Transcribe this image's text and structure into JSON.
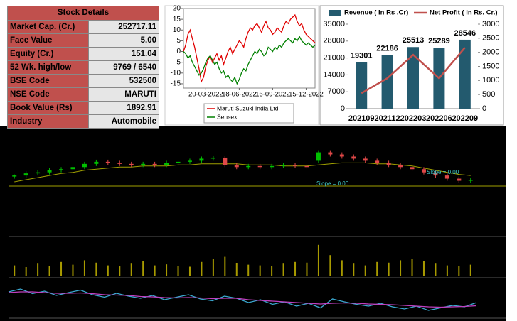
{
  "stock_details": {
    "title": "Stock Details",
    "rows": [
      [
        "Market Cap. (Cr.)",
        "252717.11"
      ],
      [
        "Face Value",
        "5.00"
      ],
      [
        "Equity (Cr.)",
        "151.04"
      ],
      [
        "52 Wk. high/low",
        "9769 / 6540"
      ],
      [
        "BSE Code",
        "532500"
      ],
      [
        "NSE Code",
        "MARUTI"
      ],
      [
        "Book Value (Rs)",
        "1892.91"
      ],
      [
        "Industry",
        "Automobile"
      ]
    ]
  },
  "chart_data": [
    {
      "type": "line",
      "categories": [
        null,
        null,
        null,
        null,
        null,
        null,
        null,
        null,
        null,
        null,
        "20-03-2022",
        null,
        null,
        null,
        null,
        null,
        null,
        null,
        null,
        null,
        null,
        null,
        null,
        null,
        null,
        "18-06-2022",
        null,
        null,
        null,
        null,
        null,
        null,
        null,
        null,
        null,
        null,
        null,
        null,
        null,
        null,
        "16-09-2022",
        null,
        null,
        null,
        null,
        null,
        null,
        null,
        null,
        null,
        null,
        null,
        null,
        null,
        null,
        "15-12-2022",
        null,
        null,
        null,
        null
      ],
      "ylim": [
        -17,
        20
      ],
      "yticks": [
        20,
        15,
        10,
        5,
        0,
        -5,
        -10,
        -15
      ],
      "series": [
        {
          "name": "Maruti Suzuki India Ltd",
          "color": "#e00000",
          "values": [
            0,
            3,
            8,
            10,
            6,
            2,
            -3,
            -8,
            -14,
            -12,
            -7,
            -4,
            -2,
            -5,
            -3,
            -1,
            -4,
            -2,
            -6,
            -3,
            0,
            2,
            -1,
            1,
            3,
            5,
            4,
            2,
            6,
            9,
            11,
            10,
            12,
            13,
            11,
            9,
            12,
            14,
            11,
            10,
            8,
            9,
            11,
            10,
            9,
            12,
            14,
            13,
            15,
            16,
            17,
            14,
            12,
            13,
            10,
            8,
            7,
            6,
            5,
            4
          ]
        },
        {
          "name": "Sensex",
          "color": "#008000",
          "values": [
            0,
            -1,
            -3,
            -2,
            -5,
            -7,
            -9,
            -11,
            -10,
            -8,
            -5,
            -3,
            -2,
            -4,
            -6,
            -5,
            -8,
            -10,
            -9,
            -12,
            -11,
            -13,
            -14,
            -12,
            -15,
            -13,
            -10,
            -8,
            -9,
            -6,
            -4,
            -2,
            0,
            -1,
            1,
            0,
            -2,
            -1,
            2,
            1,
            0,
            2,
            1,
            3,
            2,
            4,
            5,
            6,
            5,
            4,
            6,
            5,
            7,
            5,
            4,
            3,
            4,
            3,
            2,
            3
          ]
        }
      ]
    },
    {
      "type": "bar",
      "categories": [
        "202109",
        "202112",
        "202203",
        "202206",
        "202209"
      ],
      "ylim": [
        0,
        35000
      ],
      "yticks": [
        0,
        7000,
        14000,
        21000,
        28000,
        35000
      ],
      "y2lim": [
        0,
        3000
      ],
      "y2ticks": [
        0,
        500,
        1000,
        1500,
        2000,
        2500,
        3000
      ],
      "series": [
        {
          "name": "Revenue ( in Rs .Cr)",
          "color": "#235a6e",
          "values": [
            19301,
            22186,
            25513,
            25289,
            28546
          ]
        },
        {
          "name": "Net Profit ( in Rs. Cr.)",
          "color": "#c0504d",
          "axis": "y2",
          "values": [
            550,
            1080,
            1910,
            1080,
            2170
          ]
        }
      ]
    },
    {
      "type": "candlestick",
      "ylim": [
        0,
        100
      ],
      "up_color": "#00c000",
      "down_color": "#e04848",
      "average_color": "#a0a000",
      "open": [
        55,
        56,
        58,
        59,
        61,
        62,
        64,
        67,
        69,
        68,
        67,
        66,
        67,
        66,
        68,
        69,
        70,
        72,
        73,
        66,
        64,
        65,
        64,
        65,
        66,
        65,
        70,
        78,
        76,
        74,
        72,
        70,
        68,
        66,
        64,
        62,
        59,
        56,
        53,
        51
      ],
      "high": [
        57,
        60,
        61,
        63,
        64,
        66,
        69,
        71,
        71,
        70,
        69,
        69,
        69,
        70,
        71,
        72,
        74,
        75,
        75,
        68,
        67,
        67,
        67,
        68,
        68,
        67,
        80,
        80,
        78,
        76,
        74,
        72,
        70,
        68,
        66,
        64,
        61,
        58,
        55,
        54
      ],
      "low": [
        53,
        54,
        56,
        57,
        59,
        60,
        62,
        65,
        66,
        65,
        64,
        64,
        64,
        64,
        66,
        67,
        68,
        70,
        64,
        62,
        62,
        62,
        62,
        63,
        63,
        62,
        68,
        74,
        72,
        70,
        68,
        66,
        64,
        62,
        60,
        57,
        54,
        51,
        49,
        49
      ],
      "close": [
        56,
        58,
        59,
        61,
        62,
        64,
        67,
        69,
        68,
        67,
        66,
        67,
        66,
        68,
        69,
        70,
        72,
        73,
        66,
        64,
        65,
        64,
        65,
        66,
        65,
        64,
        78,
        76,
        74,
        72,
        70,
        68,
        66,
        64,
        62,
        59,
        56,
        53,
        51,
        52
      ],
      "average": [
        50,
        52,
        54,
        56,
        58,
        59,
        61,
        62,
        63,
        64,
        64,
        65,
        65,
        65,
        66,
        66,
        67,
        67,
        67,
        67,
        66,
        66,
        66,
        65,
        65,
        65,
        66,
        67,
        68,
        68,
        68,
        67,
        67,
        66,
        65,
        63,
        61,
        59,
        57,
        56
      ],
      "annotations": [
        "Slope = 0.00",
        "Slope = 0.00"
      ]
    },
    {
      "type": "bar",
      "ylim": [
        0,
        100
      ],
      "color": "#a89a00",
      "values": [
        30,
        25,
        35,
        28,
        40,
        32,
        45,
        38,
        30,
        27,
        35,
        42,
        30,
        33,
        28,
        26,
        40,
        48,
        55,
        36,
        32,
        30,
        28,
        35,
        40,
        38,
        90,
        60,
        45,
        35,
        30,
        40,
        38,
        45,
        50,
        42,
        35,
        30,
        28,
        32
      ]
    },
    {
      "type": "line",
      "ylim": [
        0,
        100
      ],
      "series": [
        {
          "color": "#3aa8d0",
          "values": [
            70,
            78,
            65,
            72,
            60,
            68,
            75,
            62,
            55,
            66,
            58,
            52,
            60,
            48,
            55,
            62,
            50,
            45,
            58,
            52,
            40,
            48,
            35,
            42,
            30,
            38,
            25,
            50,
            42,
            35,
            30,
            38,
            28,
            22,
            30,
            18,
            25,
            32,
            28,
            40
          ]
        },
        {
          "color": "#c040c0",
          "values": [
            68,
            70,
            70,
            68,
            66,
            66,
            67,
            65,
            62,
            61,
            60,
            57,
            56,
            54,
            53,
            54,
            53,
            51,
            52,
            52,
            48,
            46,
            44,
            42,
            40,
            38,
            36,
            38,
            39,
            38,
            36,
            35,
            34,
            32,
            30,
            28,
            27,
            28,
            29,
            31
          ]
        }
      ]
    }
  ]
}
